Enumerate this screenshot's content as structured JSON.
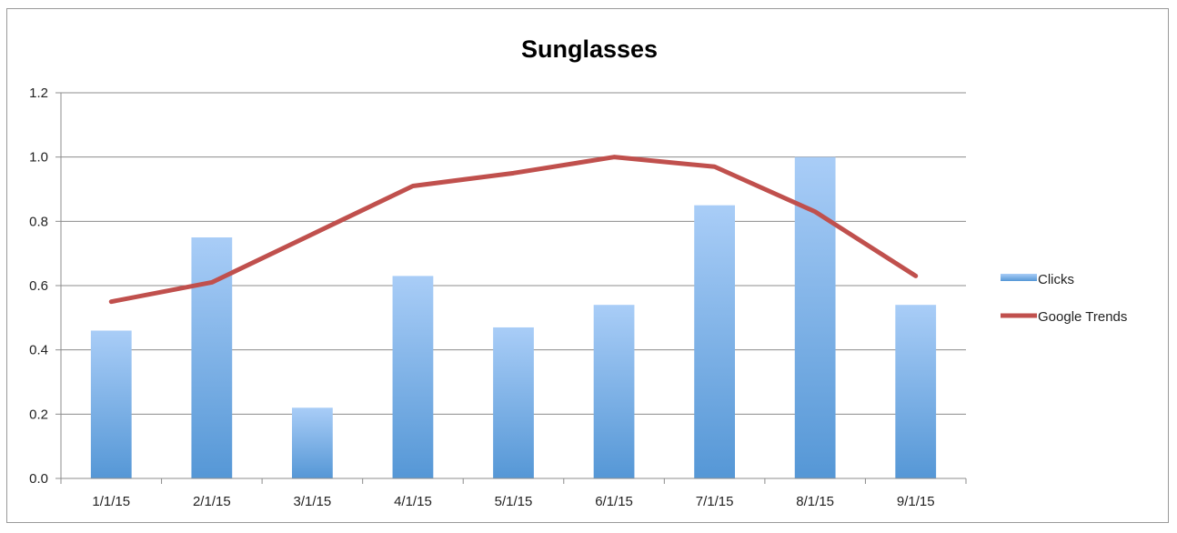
{
  "chart_data": {
    "type": "bar",
    "title": "Sunglasses",
    "xlabel": "",
    "ylabel": "",
    "categories": [
      "1/1/15",
      "2/1/15",
      "3/1/15",
      "4/1/15",
      "5/1/15",
      "6/1/15",
      "7/1/15",
      "8/1/15",
      "9/1/15"
    ],
    "series": [
      {
        "name": "Clicks",
        "type": "bar",
        "color": "#5b9bd5",
        "values": [
          0.46,
          0.75,
          0.22,
          0.63,
          0.47,
          0.54,
          0.85,
          1.0,
          0.54
        ]
      },
      {
        "name": "Google Trends",
        "type": "line",
        "color": "#c0504d",
        "values": [
          0.55,
          0.61,
          0.76,
          0.91,
          0.95,
          1.0,
          0.97,
          0.83,
          0.63
        ]
      }
    ],
    "ylim": [
      0,
      1.2
    ],
    "yticks": [
      "0.0",
      "0.2",
      "0.4",
      "0.6",
      "0.8",
      "1.0",
      "1.2"
    ],
    "grid": true,
    "legend_position": "right"
  }
}
